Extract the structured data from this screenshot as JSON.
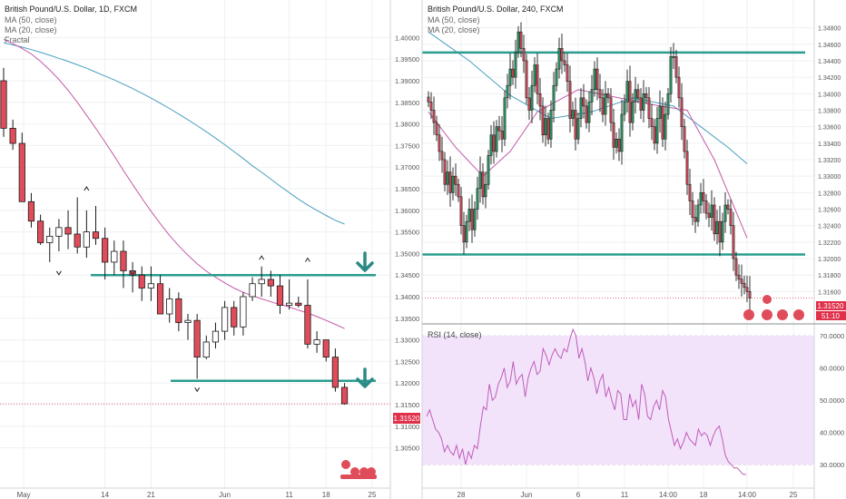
{
  "colors": {
    "up": "#ffffff",
    "down": "#e04d5a",
    "wick": "#1a1a1a",
    "level": "#2a9d8f",
    "ma50": "#4a9fbf",
    "ma20": "#c45aa8",
    "rsi": "#c05cb8",
    "rsi_band": "#f2e3fb",
    "price_marker": "#e0304a",
    "arrow": "#2a8a86",
    "grid": "#eef0f3"
  },
  "price_tag": "1.31520",
  "time_tag": "51:10",
  "chart_data": [
    {
      "type": "candlestick",
      "title": "British Pound/U.S. Dollar, 1D, FXCM",
      "legend": [
        "MA (50, close)",
        "MA (20, close)",
        "Fractal"
      ],
      "ylim": [
        1.3005,
        1.4045
      ],
      "y_ticks": [
        "1.40000",
        "1.39500",
        "1.39000",
        "1.38500",
        "1.38000",
        "1.37500",
        "1.37000",
        "1.36500",
        "1.36000",
        "1.35500",
        "1.35000",
        "1.34500",
        "1.34000",
        "1.33500",
        "1.33000",
        "1.32500",
        "1.32000",
        "1.31500",
        "1.31000",
        "1.30500"
      ],
      "x_ticks": [
        "May",
        "14",
        "21",
        "Jun",
        "11",
        "18",
        "25"
      ],
      "candles": [
        [
          1.39,
          1.393,
          1.377,
          1.379
        ],
        [
          1.379,
          1.381,
          1.374,
          1.3755
        ],
        [
          1.3755,
          1.378,
          1.362,
          1.362
        ],
        [
          1.362,
          1.364,
          1.356,
          1.3575
        ],
        [
          1.3575,
          1.359,
          1.352,
          1.3525
        ],
        [
          1.3525,
          1.356,
          1.348,
          1.354
        ],
        [
          1.354,
          1.358,
          1.3505,
          1.356
        ],
        [
          1.356,
          1.36,
          1.351,
          1.3545
        ],
        [
          1.3545,
          1.363,
          1.35,
          1.3515
        ],
        [
          1.3515,
          1.36,
          1.349,
          1.355
        ],
        [
          1.355,
          1.361,
          1.352,
          1.3535
        ],
        [
          1.3535,
          1.356,
          1.344,
          1.348
        ],
        [
          1.348,
          1.353,
          1.345,
          1.3505
        ],
        [
          1.3505,
          1.353,
          1.342,
          1.346
        ],
        [
          1.346,
          1.348,
          1.341,
          1.345
        ],
        [
          1.345,
          1.347,
          1.339,
          1.342
        ],
        [
          1.342,
          1.347,
          1.339,
          1.343
        ],
        [
          1.343,
          1.345,
          1.336,
          1.336
        ],
        [
          1.336,
          1.342,
          1.334,
          1.3395
        ],
        [
          1.3395,
          1.341,
          1.332,
          1.334
        ],
        [
          1.334,
          1.336,
          1.33,
          1.3345
        ],
        [
          1.3345,
          1.336,
          1.321,
          1.326
        ],
        [
          1.326,
          1.331,
          1.3255,
          1.3295
        ],
        [
          1.3295,
          1.334,
          1.328,
          1.332
        ],
        [
          1.332,
          1.339,
          1.33,
          1.3375
        ],
        [
          1.3375,
          1.339,
          1.331,
          1.333
        ],
        [
          1.333,
          1.341,
          1.331,
          1.34
        ],
        [
          1.34,
          1.3445,
          1.339,
          1.343
        ],
        [
          1.343,
          1.347,
          1.34,
          1.344
        ],
        [
          1.344,
          1.346,
          1.34,
          1.3425
        ],
        [
          1.3425,
          1.345,
          1.336,
          1.338
        ],
        [
          1.338,
          1.344,
          1.337,
          1.3385
        ],
        [
          1.3385,
          1.34,
          1.3375,
          1.338
        ],
        [
          1.338,
          1.344,
          1.328,
          1.329
        ],
        [
          1.329,
          1.332,
          1.327,
          1.33
        ],
        [
          1.33,
          1.33,
          1.325,
          1.326
        ],
        [
          1.326,
          1.328,
          1.318,
          1.319
        ],
        [
          1.319,
          1.32,
          1.315,
          1.3152
        ]
      ],
      "ma50": [
        1.3988,
        1.3983,
        1.3978,
        1.3972,
        1.3966,
        1.3959,
        1.3952,
        1.3945,
        1.3937,
        1.3929,
        1.392,
        1.3911,
        1.3902,
        1.3892,
        1.3882,
        1.3871,
        1.386,
        1.3848,
        1.3836,
        1.3823,
        1.381,
        1.3796,
        1.3782,
        1.3767,
        1.3752,
        1.3736,
        1.372,
        1.3703,
        1.3688,
        1.3672,
        1.3656,
        1.3641,
        1.3626,
        1.3612,
        1.36,
        1.3588,
        1.3577,
        1.3568
      ],
      "ma20": [
        1.3996,
        1.3986,
        1.3975,
        1.3962,
        1.3945,
        1.3925,
        1.3903,
        1.3878,
        1.385,
        1.382,
        1.379,
        1.3758,
        1.3726,
        1.3692,
        1.366,
        1.3628,
        1.3598,
        1.3569,
        1.3542,
        1.3518,
        1.3496,
        1.3476,
        1.3459,
        1.3445,
        1.3432,
        1.342,
        1.341,
        1.3402,
        1.3395,
        1.3388,
        1.3382,
        1.3376,
        1.3369,
        1.3362,
        1.3354,
        1.3345,
        1.3336,
        1.3326
      ],
      "levels": [
        1.345,
        1.3205
      ],
      "fractals": [
        {
          "i": 9,
          "price": 1.365,
          "dir": "up"
        },
        {
          "i": 6,
          "price": 1.3455,
          "dir": "down"
        },
        {
          "i": 14,
          "price": 1.3455,
          "dir": "down"
        },
        {
          "i": 28,
          "price": 1.349,
          "dir": "up"
        },
        {
          "i": 33,
          "price": 1.3485,
          "dir": "up"
        },
        {
          "i": 21,
          "price": 1.3185,
          "dir": "down"
        }
      ]
    },
    {
      "type": "candlestick",
      "title": "British Pound/U.S. Dollar, 240, FXCM",
      "legend": [
        "MA (50, close)",
        "MA (20, close)"
      ],
      "ylim": [
        1.3145,
        1.3495
      ],
      "y_ticks": [
        "1.34800",
        "1.34600",
        "1.34400",
        "1.34200",
        "1.34000",
        "1.33800",
        "1.33600",
        "1.33400",
        "1.33200",
        "1.33000",
        "1.32800",
        "1.32600",
        "1.32400",
        "1.32200",
        "1.32000",
        "1.31800",
        "1.31600"
      ],
      "x_ticks": [
        "28",
        "Jun",
        "6",
        "11",
        "14:00",
        "18",
        "14:00",
        "25"
      ],
      "closes": [
        1.339,
        1.338,
        1.3365,
        1.335,
        1.333,
        1.332,
        1.329,
        1.3305,
        1.328,
        1.33,
        1.329,
        1.3275,
        1.324,
        1.322,
        1.3245,
        1.326,
        1.3235,
        1.326,
        1.3285,
        1.3305,
        1.3275,
        1.329,
        1.3325,
        1.335,
        1.333,
        1.336,
        1.3355,
        1.3345,
        1.3395,
        1.341,
        1.343,
        1.342,
        1.345,
        1.3475,
        1.3455,
        1.344,
        1.3395,
        1.338,
        1.341,
        1.3435,
        1.34,
        1.3385,
        1.335,
        1.337,
        1.3345,
        1.338,
        1.341,
        1.343,
        1.3455,
        1.344,
        1.3435,
        1.3415,
        1.337,
        1.338,
        1.3345,
        1.337,
        1.3395,
        1.3385,
        1.3365,
        1.339,
        1.3405,
        1.343,
        1.3405,
        1.3395,
        1.3375,
        1.34,
        1.3395,
        1.3365,
        1.3335,
        1.3345,
        1.333,
        1.3375,
        1.339,
        1.3415,
        1.3365,
        1.339,
        1.3405,
        1.3395,
        1.338,
        1.34,
        1.3395,
        1.337,
        1.336,
        1.334,
        1.337,
        1.3385,
        1.3345,
        1.3375,
        1.34,
        1.3445,
        1.3445,
        1.342,
        1.3395,
        1.336,
        1.333,
        1.329,
        1.327,
        1.325,
        1.3245,
        1.3265,
        1.328,
        1.327,
        1.3255,
        1.325,
        1.3265,
        1.323,
        1.3245,
        1.322,
        1.3245,
        1.3265,
        1.326,
        1.324,
        1.32,
        1.318,
        1.3175,
        1.317,
        1.3165,
        1.316,
        1.3152
      ],
      "ma50_points": [
        [
          0,
          1.3475
        ],
        [
          15,
          1.344
        ],
        [
          30,
          1.3398
        ],
        [
          45,
          1.337
        ],
        [
          60,
          1.3378
        ],
        [
          75,
          1.3395
        ],
        [
          90,
          1.3385
        ],
        [
          100,
          1.336
        ],
        [
          110,
          1.3335
        ],
        [
          117,
          1.3315
        ]
      ],
      "ma20_points": [
        [
          0,
          1.3378
        ],
        [
          10,
          1.3335
        ],
        [
          20,
          1.33
        ],
        [
          30,
          1.333
        ],
        [
          40,
          1.3378
        ],
        [
          55,
          1.3405
        ],
        [
          70,
          1.3395
        ],
        [
          85,
          1.3385
        ],
        [
          95,
          1.338
        ],
        [
          105,
          1.332
        ],
        [
          117,
          1.3225
        ]
      ],
      "levels": [
        1.345,
        1.3205
      ]
    },
    {
      "type": "line",
      "title": "RSI (14, close)",
      "ylim": [
        25,
        72
      ],
      "y_ticks": [
        "70.0000",
        "60.0000",
        "50.0000",
        "40.0000",
        "30.0000"
      ],
      "band": [
        30,
        70
      ],
      "values": [
        45,
        47,
        44,
        41,
        40,
        38,
        34,
        36,
        34,
        33,
        36,
        32,
        35,
        30,
        34,
        32,
        36,
        35,
        42,
        48,
        47,
        55,
        50,
        51,
        55,
        57,
        60,
        54,
        56,
        62,
        55,
        57,
        58,
        51,
        57,
        60,
        62,
        58,
        59,
        66,
        64,
        61,
        64,
        66,
        64,
        63,
        66,
        65,
        69,
        72,
        70,
        63,
        66,
        62,
        56,
        60,
        57,
        52,
        56,
        58,
        51,
        54,
        50,
        47,
        53,
        52,
        44,
        44,
        52,
        48,
        50,
        44,
        55,
        52,
        45,
        44,
        48,
        50,
        47,
        53,
        51,
        44,
        40,
        36,
        38,
        35,
        37,
        40,
        38,
        37,
        36,
        41,
        39,
        40,
        39,
        36,
        39,
        41,
        42,
        38,
        33,
        31,
        30,
        29,
        29,
        28,
        27,
        27
      ]
    }
  ]
}
